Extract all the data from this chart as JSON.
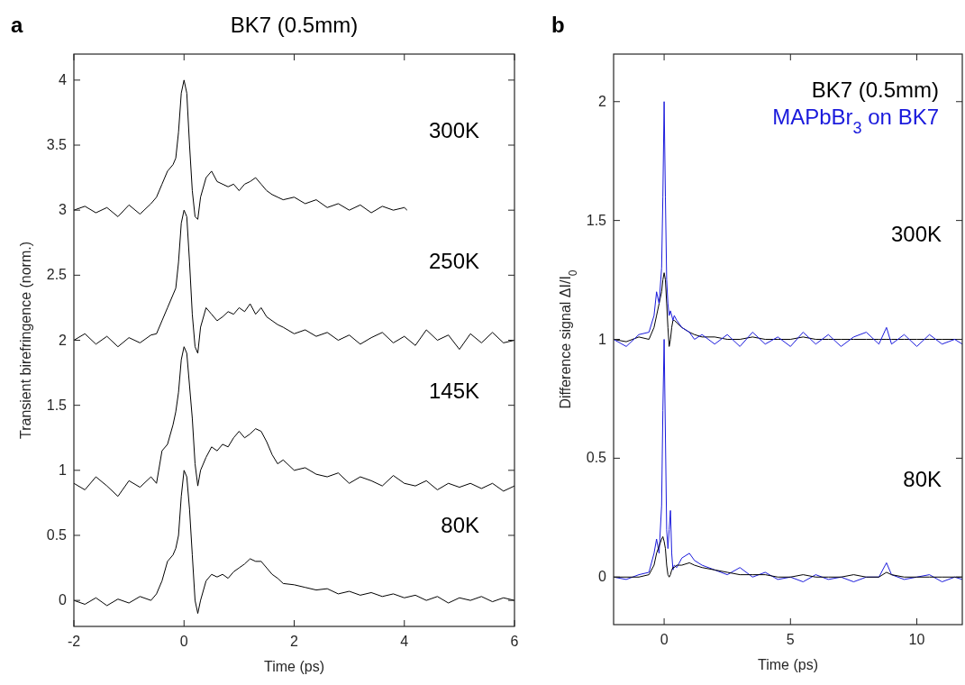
{
  "chart_data": [
    {
      "type": "line",
      "title": "BK7 (0.5mm)",
      "xlabel": "Time (ps)",
      "ylabel": "Transient birefringence (norm.)",
      "x": [
        -2,
        -1.8,
        -1.6,
        -1.4,
        -1.2,
        -1,
        -0.8,
        -0.6,
        -0.5,
        -0.4,
        -0.3,
        -0.2,
        -0.15,
        -0.1,
        -0.05,
        0,
        0.05,
        0.1,
        0.15,
        0.2,
        0.25,
        0.3,
        0.4,
        0.5,
        0.6,
        0.7,
        0.8,
        0.9,
        1,
        1.1,
        1.2,
        1.3,
        1.4,
        1.5,
        1.6,
        1.7,
        1.8,
        2,
        2.2,
        2.4,
        2.6,
        2.8,
        3,
        3.2,
        3.4,
        3.6,
        3.8,
        4,
        4.2,
        4.4,
        4.6,
        4.8,
        5,
        5.2,
        5.4,
        5.6,
        5.8,
        6
      ],
      "xlim": [
        -2,
        6
      ],
      "ylim": [
        -0.2,
        4.2
      ],
      "xticks": [
        -2,
        0,
        2,
        4,
        6
      ],
      "yticks": [
        0,
        0.5,
        1,
        1.5,
        2,
        2.5,
        3,
        3.5,
        4
      ],
      "series": [
        {
          "color": "#000000",
          "x": [
            -2,
            -1.8,
            -1.6,
            -1.4,
            -1.2,
            -1,
            -0.8,
            -0.6,
            -0.5,
            -0.4,
            -0.3,
            -0.2,
            -0.15,
            -0.1,
            -0.05,
            0,
            0.05,
            0.1,
            0.15,
            0.2,
            0.25,
            0.3,
            0.4,
            0.5,
            0.6,
            0.7,
            0.8,
            0.9,
            1,
            1.1,
            1.2,
            1.3,
            1.4,
            1.5,
            1.6,
            1.7,
            1.8,
            2,
            2.2,
            2.4,
            2.6,
            2.8,
            3,
            3.2,
            3.4,
            3.6,
            3.8,
            4,
            4.05
          ],
          "values": [
            3.0,
            3.03,
            2.98,
            3.02,
            2.95,
            3.04,
            2.97,
            3.05,
            3.1,
            3.2,
            3.3,
            3.35,
            3.4,
            3.6,
            3.9,
            4.0,
            3.9,
            3.5,
            3.15,
            2.95,
            2.93,
            3.1,
            3.25,
            3.3,
            3.22,
            3.2,
            3.18,
            3.2,
            3.15,
            3.2,
            3.22,
            3.25,
            3.2,
            3.15,
            3.12,
            3.1,
            3.08,
            3.1,
            3.05,
            3.08,
            3.02,
            3.05,
            3.0,
            3.04,
            2.98,
            3.03,
            3.0,
            3.02,
            3.0
          ]
        },
        {
          "color": "#000000",
          "values": [
            2.0,
            2.05,
            1.97,
            2.03,
            1.95,
            2.02,
            1.98,
            2.04,
            2.05,
            2.15,
            2.25,
            2.35,
            2.4,
            2.6,
            2.9,
            3.0,
            2.95,
            2.6,
            2.2,
            1.95,
            1.9,
            2.1,
            2.25,
            2.2,
            2.15,
            2.18,
            2.22,
            2.2,
            2.25,
            2.22,
            2.28,
            2.2,
            2.25,
            2.18,
            2.15,
            2.12,
            2.1,
            2.05,
            2.08,
            2.03,
            2.06,
            2.0,
            2.04,
            1.97,
            2.02,
            2.06,
            1.98,
            2.03,
            1.96,
            2.08,
            2.0,
            2.04,
            1.93,
            2.05,
            1.98,
            2.06,
            1.98,
            2.0
          ]
        },
        {
          "color": "#000000",
          "values": [
            0.9,
            0.85,
            0.95,
            0.88,
            0.8,
            0.92,
            0.87,
            0.95,
            0.9,
            1.15,
            1.2,
            1.35,
            1.45,
            1.6,
            1.85,
            1.95,
            1.9,
            1.65,
            1.4,
            1.05,
            0.88,
            1.0,
            1.1,
            1.18,
            1.15,
            1.2,
            1.18,
            1.25,
            1.3,
            1.25,
            1.28,
            1.32,
            1.3,
            1.22,
            1.12,
            1.05,
            1.08,
            1.0,
            1.02,
            0.97,
            0.95,
            0.98,
            0.9,
            0.95,
            0.92,
            0.88,
            0.96,
            0.9,
            0.88,
            0.92,
            0.85,
            0.9,
            0.87,
            0.9,
            0.86,
            0.9,
            0.84,
            0.88
          ]
        },
        {
          "color": "#000000",
          "values": [
            0.0,
            -0.03,
            0.02,
            -0.04,
            0.01,
            -0.02,
            0.03,
            0.0,
            0.05,
            0.15,
            0.3,
            0.35,
            0.4,
            0.5,
            0.8,
            1.0,
            0.95,
            0.7,
            0.35,
            0.0,
            -0.1,
            0.0,
            0.15,
            0.2,
            0.18,
            0.2,
            0.17,
            0.22,
            0.25,
            0.28,
            0.32,
            0.3,
            0.3,
            0.25,
            0.2,
            0.17,
            0.13,
            0.12,
            0.1,
            0.08,
            0.09,
            0.05,
            0.07,
            0.04,
            0.06,
            0.03,
            0.05,
            0.02,
            0.04,
            0.0,
            0.03,
            -0.02,
            0.02,
            0.0,
            0.03,
            -0.01,
            0.02,
            0.0
          ]
        }
      ],
      "annotations": [
        "a",
        "300K",
        "250K",
        "145K",
        "80K"
      ]
    },
    {
      "type": "line",
      "xlabel": "Time (ps)",
      "ylabel": "Difference signal ΔI/I$_{0}$",
      "x": [
        -2,
        -1.5,
        -1,
        -0.6,
        -0.4,
        -0.3,
        -0.2,
        -0.1,
        -0.05,
        0,
        0.05,
        0.1,
        0.15,
        0.2,
        0.25,
        0.3,
        0.35,
        0.4,
        0.5,
        0.7,
        1,
        1.2,
        1.5,
        2,
        2.5,
        3,
        3.5,
        4,
        4.5,
        5,
        5.5,
        6,
        6.5,
        7,
        7.5,
        8,
        8.5,
        8.8,
        9,
        9.5,
        10,
        10.5,
        11,
        11.5,
        11.8
      ],
      "xlim": [
        -2,
        11.8
      ],
      "ylim": [
        -0.2,
        2.2
      ],
      "xticks": [
        0,
        5,
        10
      ],
      "yticks": [
        0,
        0.5,
        1,
        1.5,
        2
      ],
      "legend": "top right",
      "series": [
        {
          "name": "BK7 (0.5mm)",
          "color": "#000000",
          "values": [
            1.0,
            0.99,
            1.01,
            1.0,
            1.05,
            1.1,
            1.15,
            1.2,
            1.25,
            1.28,
            1.25,
            1.15,
            1.05,
            0.97,
            1.0,
            1.05,
            1.08,
            1.08,
            1.07,
            1.05,
            1.03,
            1.02,
            1.01,
            1.01,
            1.0,
            1.0,
            1.01,
            1.0,
            1.0,
            1.0,
            1.01,
            1.0,
            1.0,
            1.0,
            1.0,
            1.0,
            1.0,
            1.0,
            1.0,
            1.0,
            1.0,
            1.0,
            1.0,
            1.0,
            1.0
          ]
        },
        {
          "name": "MAPbBr$_{3}$ on BK7",
          "color": "#1a1adc",
          "values": [
            1.0,
            0.97,
            1.02,
            1.03,
            1.1,
            1.2,
            1.15,
            1.3,
            1.6,
            2.0,
            1.6,
            1.25,
            1.15,
            1.1,
            1.12,
            1.1,
            1.08,
            1.1,
            1.08,
            1.05,
            1.03,
            1.0,
            1.02,
            0.98,
            1.02,
            0.97,
            1.03,
            0.98,
            1.01,
            0.97,
            1.03,
            0.98,
            1.02,
            0.97,
            1.01,
            1.03,
            0.98,
            1.05,
            0.98,
            1.02,
            0.97,
            1.02,
            0.98,
            1.0,
            0.98
          ]
        },
        {
          "color": "#1a1adc",
          "values": [
            0.0,
            -0.01,
            0.01,
            0.02,
            0.1,
            0.16,
            0.1,
            0.3,
            0.7,
            1.0,
            0.6,
            0.2,
            0.12,
            0.2,
            0.28,
            0.1,
            0.03,
            0.05,
            0.04,
            0.08,
            0.1,
            0.07,
            0.05,
            0.03,
            0.01,
            0.04,
            0.0,
            0.02,
            -0.01,
            0.0,
            -0.02,
            0.01,
            -0.01,
            0.0,
            -0.02,
            0.0,
            0.0,
            0.06,
            0.01,
            -0.01,
            0.0,
            0.01,
            -0.02,
            0.0,
            -0.01
          ]
        },
        {
          "color": "#000000",
          "values": [
            0.0,
            0.0,
            0.0,
            0.01,
            0.05,
            0.1,
            0.13,
            0.16,
            0.17,
            0.15,
            0.12,
            0.05,
            0.01,
            0.0,
            0.01,
            0.03,
            0.04,
            0.04,
            0.05,
            0.05,
            0.06,
            0.05,
            0.04,
            0.03,
            0.02,
            0.01,
            0.01,
            0.01,
            0.0,
            0.0,
            0.01,
            0.0,
            0.0,
            0.0,
            0.01,
            0.0,
            0.0,
            0.02,
            0.01,
            0.0,
            0.0,
            0.0,
            0.0,
            0.0,
            0.0
          ]
        }
      ],
      "annotations": [
        "b",
        "300K",
        "80K"
      ]
    }
  ]
}
